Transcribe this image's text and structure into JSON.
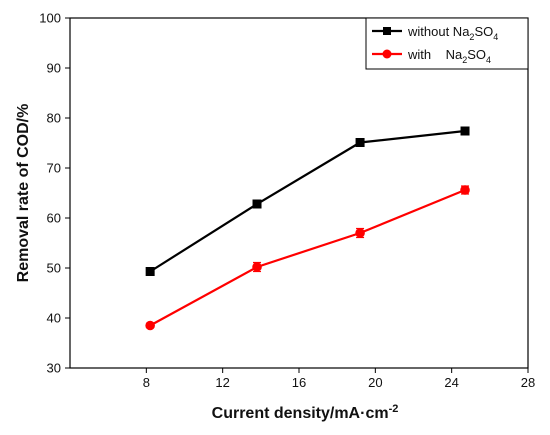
{
  "chart_data": {
    "type": "line",
    "xlabel": "Current density/mA·cm",
    "xlabel_sup": "-2",
    "ylabel": "Removal rate of COD/%",
    "xlim": [
      4,
      28
    ],
    "ylim": [
      30,
      100
    ],
    "xticks": [
      8,
      12,
      16,
      20,
      24,
      28
    ],
    "yticks": [
      30,
      40,
      50,
      60,
      70,
      80,
      90,
      100
    ],
    "legend_position": "top-right",
    "grid": false,
    "series": [
      {
        "legend_prefix": "without Na",
        "legend_sub1": "2",
        "legend_mid": "SO",
        "legend_sub2": "4",
        "color": "#000000",
        "marker": "square",
        "x": [
          8.2,
          13.8,
          19.2,
          24.7
        ],
        "y": [
          49.3,
          62.8,
          75.1,
          77.4
        ],
        "err": [
          0.0,
          0.7,
          0.6,
          0.7
        ]
      },
      {
        "legend_prefix": "with    Na",
        "legend_sub1": "2",
        "legend_mid": "SO",
        "legend_sub2": "4",
        "color": "#ff0000",
        "marker": "circle",
        "x": [
          8.2,
          13.8,
          19.2,
          24.7
        ],
        "y": [
          38.5,
          50.2,
          57.0,
          65.6
        ],
        "err": [
          0.0,
          0.9,
          0.9,
          0.8
        ]
      }
    ]
  }
}
